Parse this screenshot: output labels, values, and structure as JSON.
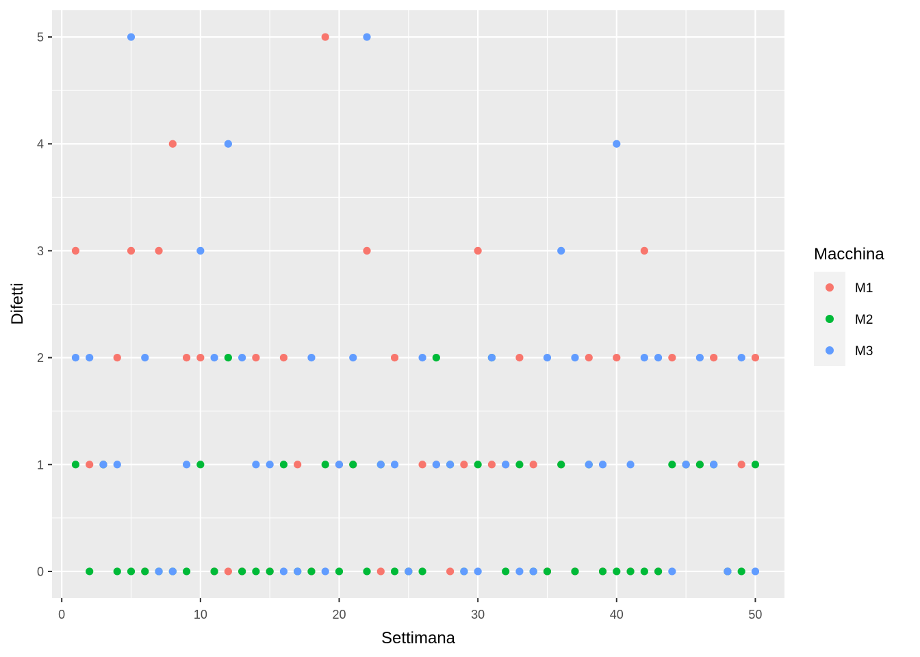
{
  "chart_data": {
    "type": "scatter",
    "title": "",
    "xlabel": "Settimana",
    "ylabel": "Difetti",
    "xlim": [
      -0.7,
      52.1
    ],
    "ylim": [
      -0.25,
      5.25
    ],
    "x_ticks": [
      "0",
      "10",
      "20",
      "30",
      "40",
      "50"
    ],
    "y_ticks": [
      "0",
      "1",
      "2",
      "3",
      "4",
      "5"
    ],
    "grid": true,
    "legend": {
      "title": "Macchina",
      "position": "right"
    },
    "series": [
      {
        "name": "M1",
        "color": "#F8766D",
        "x": [
          1,
          2,
          3,
          4,
          5,
          6,
          7,
          8,
          9,
          10,
          11,
          12,
          13,
          14,
          15,
          16,
          17,
          18,
          19,
          20,
          21,
          22,
          23,
          24,
          25,
          26,
          27,
          28,
          29,
          30,
          31,
          32,
          33,
          34,
          35,
          36,
          37,
          38,
          39,
          40,
          41,
          42,
          43,
          44,
          45,
          46,
          47,
          48,
          49,
          50
        ],
        "y": [
          3,
          1,
          1,
          2,
          3,
          0,
          3,
          4,
          2,
          2,
          0,
          0,
          0,
          2,
          0,
          2,
          1,
          0,
          5,
          1,
          1,
          3,
          0,
          2,
          0,
          1,
          1,
          0,
          1,
          3,
          1,
          1,
          2,
          1,
          0,
          1,
          0,
          2,
          0,
          2,
          0,
          3,
          0,
          2,
          1,
          1,
          2,
          0,
          1,
          2
        ]
      },
      {
        "name": "M2",
        "color": "#00BA38",
        "x": [
          1,
          2,
          3,
          4,
          5,
          6,
          7,
          8,
          9,
          10,
          11,
          12,
          13,
          14,
          15,
          16,
          17,
          18,
          19,
          20,
          21,
          22,
          23,
          24,
          25,
          26,
          27,
          28,
          29,
          30,
          31,
          32,
          33,
          34,
          35,
          36,
          37,
          38,
          39,
          40,
          41,
          42,
          43,
          44,
          45,
          46,
          47,
          48,
          49,
          50
        ],
        "y": [
          1,
          0,
          1,
          0,
          0,
          0,
          0,
          0,
          0,
          1,
          0,
          2,
          0,
          0,
          0,
          1,
          0,
          0,
          1,
          0,
          1,
          0,
          1,
          0,
          0,
          0,
          2,
          1,
          0,
          1,
          2,
          0,
          1,
          0,
          0,
          1,
          0,
          1,
          0,
          0,
          0,
          0,
          0,
          1,
          1,
          1,
          1,
          0,
          0,
          1
        ]
      },
      {
        "name": "M3",
        "color": "#619CFF",
        "x": [
          1,
          2,
          3,
          4,
          5,
          6,
          7,
          8,
          9,
          10,
          11,
          12,
          13,
          14,
          15,
          16,
          17,
          18,
          19,
          20,
          21,
          22,
          23,
          24,
          25,
          26,
          27,
          28,
          29,
          30,
          31,
          32,
          33,
          34,
          35,
          36,
          37,
          38,
          39,
          40,
          41,
          42,
          43,
          44,
          45,
          46,
          47,
          48,
          49,
          50
        ],
        "y": [
          2,
          2,
          1,
          1,
          5,
          2,
          0,
          0,
          1,
          3,
          2,
          4,
          2,
          1,
          1,
          0,
          0,
          2,
          0,
          1,
          2,
          5,
          1,
          1,
          0,
          2,
          1,
          1,
          0,
          0,
          2,
          1,
          0,
          0,
          2,
          3,
          2,
          1,
          1,
          4,
          1,
          2,
          2,
          0,
          1,
          2,
          1,
          0,
          2,
          0
        ]
      }
    ]
  }
}
